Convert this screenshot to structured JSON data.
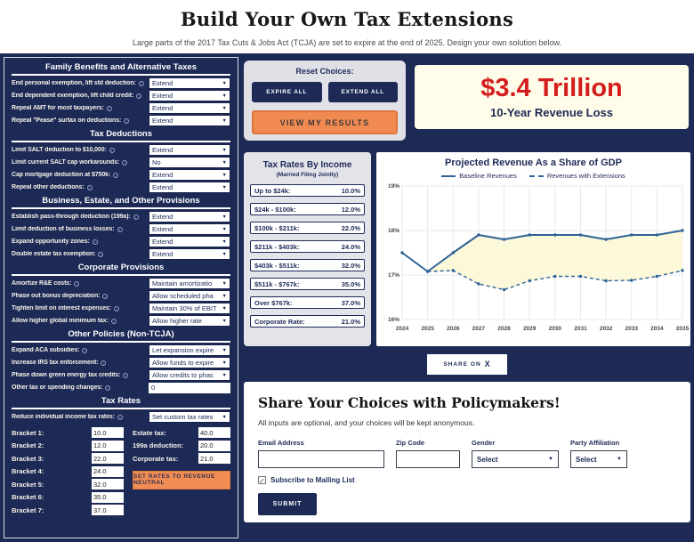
{
  "header": {
    "title": "Build Your Own Tax Extensions",
    "subtitle": "Large parts of the 2017 Tax Cuts & Jobs Act (TCJA) are set to expire at the end of 2025. Design your own solution below."
  },
  "colors": {
    "navy": "#1d2a56",
    "orange": "#f08a50",
    "red": "#d41d1d",
    "cream": "#fffce9",
    "panel_gray": "#e0e0e7",
    "line_blue": "#2f6496",
    "area_fill": "#fcf8da"
  },
  "left_panel": {
    "sections": [
      {
        "title": "Family Benefits and Alternative Taxes",
        "rows": [
          {
            "label": "End personal exemption, lift std deduction:",
            "control": "select",
            "value": "Extend"
          },
          {
            "label": "End dependent exemption, lift child credit:",
            "control": "select",
            "value": "Extend"
          },
          {
            "label": "Repeal AMT for most taxpayers:",
            "control": "select",
            "value": "Extend"
          },
          {
            "label": "Repeal \"Pease\" surtax on deductions:",
            "control": "select",
            "value": "Extend"
          }
        ]
      },
      {
        "title": "Tax Deductions",
        "rows": [
          {
            "label": "Limit SALT deduction to $10,000:",
            "control": "select",
            "value": "Extend"
          },
          {
            "label": "Limit current SALT cap workarounds:",
            "control": "select",
            "value": "No"
          },
          {
            "label": "Cap mortgage deduction at $750k:",
            "control": "select",
            "value": "Extend"
          },
          {
            "label": "Repeal other deductions:",
            "control": "select",
            "value": "Extend"
          }
        ]
      },
      {
        "title": "Business, Estate, and Other Provisions",
        "rows": [
          {
            "label": "Establish pass-through deduction (199a):",
            "control": "select",
            "value": "Extend"
          },
          {
            "label": "Limit deduction of business losses:",
            "control": "select",
            "value": "Extend"
          },
          {
            "label": "Expand opportunity zones:",
            "control": "select",
            "value": "Extend"
          },
          {
            "label": "Double estate tax exemption:",
            "control": "select",
            "value": "Extend"
          }
        ]
      },
      {
        "title": "Corporate Provisions",
        "rows": [
          {
            "label": "Amortize R&E costs:",
            "control": "select",
            "value": "Maintain amortizatio"
          },
          {
            "label": "Phase out bonus depreciation:",
            "control": "select",
            "value": "Allow scheduled pha"
          },
          {
            "label": "Tighten limit on interest expenses:",
            "control": "select",
            "value": "Maintain 30% of EBIT"
          },
          {
            "label": "Allow higher global minimum tax:",
            "control": "select",
            "value": "Allow higher rate"
          }
        ]
      },
      {
        "title": "Other Policies (Non-TCJA)",
        "rows": [
          {
            "label": "Expand ACA subsidies:",
            "control": "select",
            "value": "Let expansion expire"
          },
          {
            "label": "Increase IRS tax enforcement:",
            "control": "select",
            "value": "Allow funds to expire"
          },
          {
            "label": "Phase down green energy tax credits:",
            "control": "select",
            "value": "Allow credits to phas"
          },
          {
            "label": "Other tax or spending changes:",
            "control": "input",
            "value": "0"
          }
        ]
      },
      {
        "title": "Tax Rates",
        "rows": [
          {
            "label": "Reduce individual income tax rates:",
            "control": "select",
            "value": "Set custom tax rates"
          }
        ]
      }
    ],
    "brackets": [
      {
        "label": "Bracket 1:",
        "value": "10.0"
      },
      {
        "label": "Bracket 2:",
        "value": "12.0"
      },
      {
        "label": "Bracket 3:",
        "value": "22.0"
      },
      {
        "label": "Bracket 4:",
        "value": "24.0"
      },
      {
        "label": "Bracket 5:",
        "value": "32.0"
      },
      {
        "label": "Bracket 6:",
        "value": "35.0"
      },
      {
        "label": "Bracket 7:",
        "value": "37.0"
      }
    ],
    "other_rates": [
      {
        "label": "Estate tax:",
        "value": "40.0"
      },
      {
        "label": "199a deduction:",
        "value": "20.0"
      },
      {
        "label": "Corporate tax:",
        "value": "21.0"
      }
    ],
    "revenue_neutral_label": "SET RATES TO REVENUE NEUTRAL"
  },
  "reset": {
    "title": "Reset Choices:",
    "expire_label": "EXPIRE ALL",
    "extend_label": "EXTEND ALL",
    "view_results_label": "VIEW MY RESULTS"
  },
  "results": {
    "amount": "$3.4 Trillion",
    "caption": "10-Year Revenue Loss"
  },
  "tax_rates_by_income": {
    "title": "Tax Rates By Income",
    "subtitle": "(Married Filing Jointly)",
    "rows": [
      {
        "label": "Up to $24k:",
        "value": "10.0%"
      },
      {
        "label": "$24k - $100k:",
        "value": "12.0%"
      },
      {
        "label": "$100k - $211k:",
        "value": "22.0%"
      },
      {
        "label": "$211k - $403k:",
        "value": "24.0%"
      },
      {
        "label": "$403k - $511k:",
        "value": "32.0%"
      },
      {
        "label": "$511k - $767k:",
        "value": "35.0%"
      },
      {
        "label": "Over $767k:",
        "value": "37.0%"
      },
      {
        "label": "Corporate Rate:",
        "value": "21.0%"
      }
    ]
  },
  "chart_data": {
    "type": "line",
    "title": "Projected Revenue As a Share of GDP",
    "x": [
      2024,
      2025,
      2026,
      2027,
      2028,
      2029,
      2030,
      2031,
      2032,
      2033,
      2034,
      2035
    ],
    "ylim": [
      16,
      19
    ],
    "yticks": [
      16,
      17,
      18,
      19
    ],
    "ytick_suffix": "%",
    "grid": true,
    "legend_position": "top",
    "series": [
      {
        "name": "Baseline Revenues",
        "style": "solid",
        "values": [
          17.5,
          17.08,
          17.5,
          17.9,
          17.8,
          17.9,
          17.9,
          17.9,
          17.8,
          17.9,
          17.9,
          18.0
        ]
      },
      {
        "name": "Revenues with Extensions",
        "style": "dashed",
        "values": [
          null,
          17.08,
          17.1,
          16.8,
          16.67,
          16.87,
          16.97,
          16.97,
          16.87,
          16.88,
          16.97,
          17.1
        ]
      }
    ],
    "fill_between_series": true
  },
  "share": {
    "label": "SHARE ON",
    "x_icon": "X"
  },
  "form": {
    "heading": "Share Your Choices with Policymakers!",
    "note": "All inputs are optional, and your choices will be kept anonymous.",
    "fields": {
      "email": {
        "label": "Email Address",
        "value": ""
      },
      "zip": {
        "label": "Zip Code",
        "value": ""
      },
      "gender": {
        "label": "Gender",
        "value": "Select"
      },
      "party": {
        "label": "Party Affiliation",
        "value": "Select"
      }
    },
    "checkbox_label": "Subscribe to Mailing List",
    "checkbox_checked": true,
    "checkbox_mark": "✓",
    "submit_label": "SUBMIT"
  }
}
